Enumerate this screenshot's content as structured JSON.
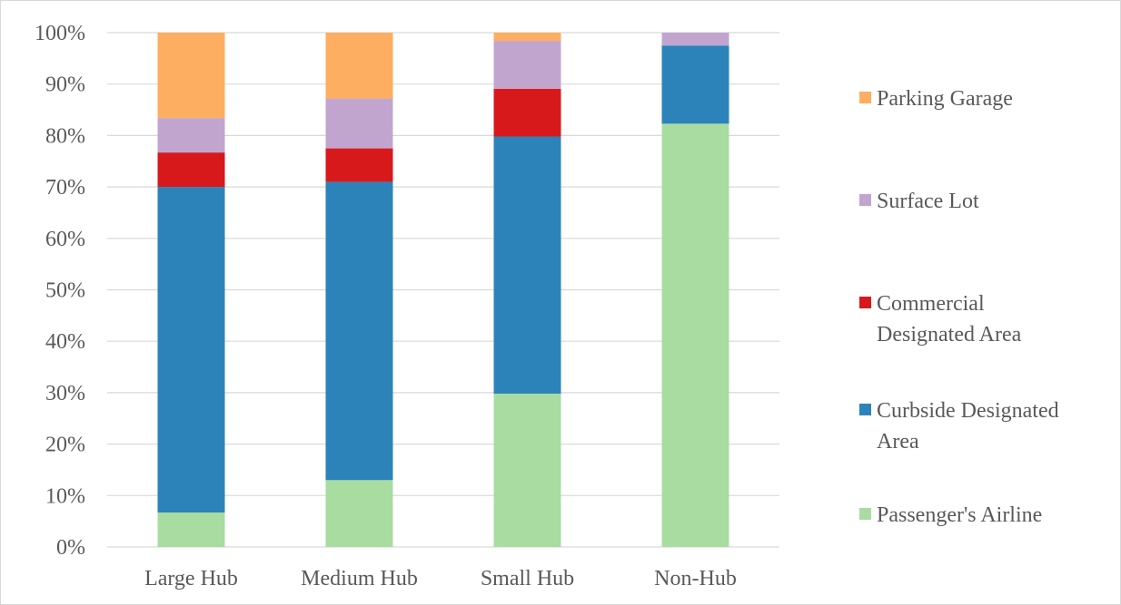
{
  "chart_data": {
    "type": "bar",
    "stacked": true,
    "categories": [
      "Large Hub",
      "Medium Hub",
      "Small Hub",
      "Non-Hub"
    ],
    "series": [
      {
        "name": "Passenger's Airline",
        "color": "#a9dca0",
        "values": [
          6.7,
          13.0,
          29.8,
          82.3
        ]
      },
      {
        "name": "Curbside Designated Area",
        "color": "#2b83ba",
        "values": [
          63.3,
          58.0,
          50.0,
          15.2
        ]
      },
      {
        "name": "Commercial Designated Area",
        "color": "#d7191c",
        "values": [
          6.7,
          6.5,
          9.3,
          0
        ]
      },
      {
        "name": "Surface Lot",
        "color": "#c2a5cf",
        "values": [
          6.7,
          9.7,
          9.3,
          2.5
        ]
      },
      {
        "name": "Parking Garage",
        "color": "#fdae61",
        "values": [
          16.6,
          12.8,
          1.6,
          0
        ]
      }
    ],
    "yticks": [
      "0%",
      "10%",
      "20%",
      "30%",
      "40%",
      "50%",
      "60%",
      "70%",
      "80%",
      "90%",
      "100%"
    ],
    "ylim": [
      0,
      100
    ],
    "legend_order": [
      4,
      3,
      2,
      1,
      0
    ],
    "legend_labels": [
      [
        "Parking Garage"
      ],
      [
        "Surface Lot"
      ],
      [
        "Commercial",
        "Designated Area"
      ],
      [
        "Curbside Designated",
        "Area"
      ],
      [
        "Passenger's Airline"
      ]
    ],
    "grid": true,
    "legend_position": "right"
  }
}
